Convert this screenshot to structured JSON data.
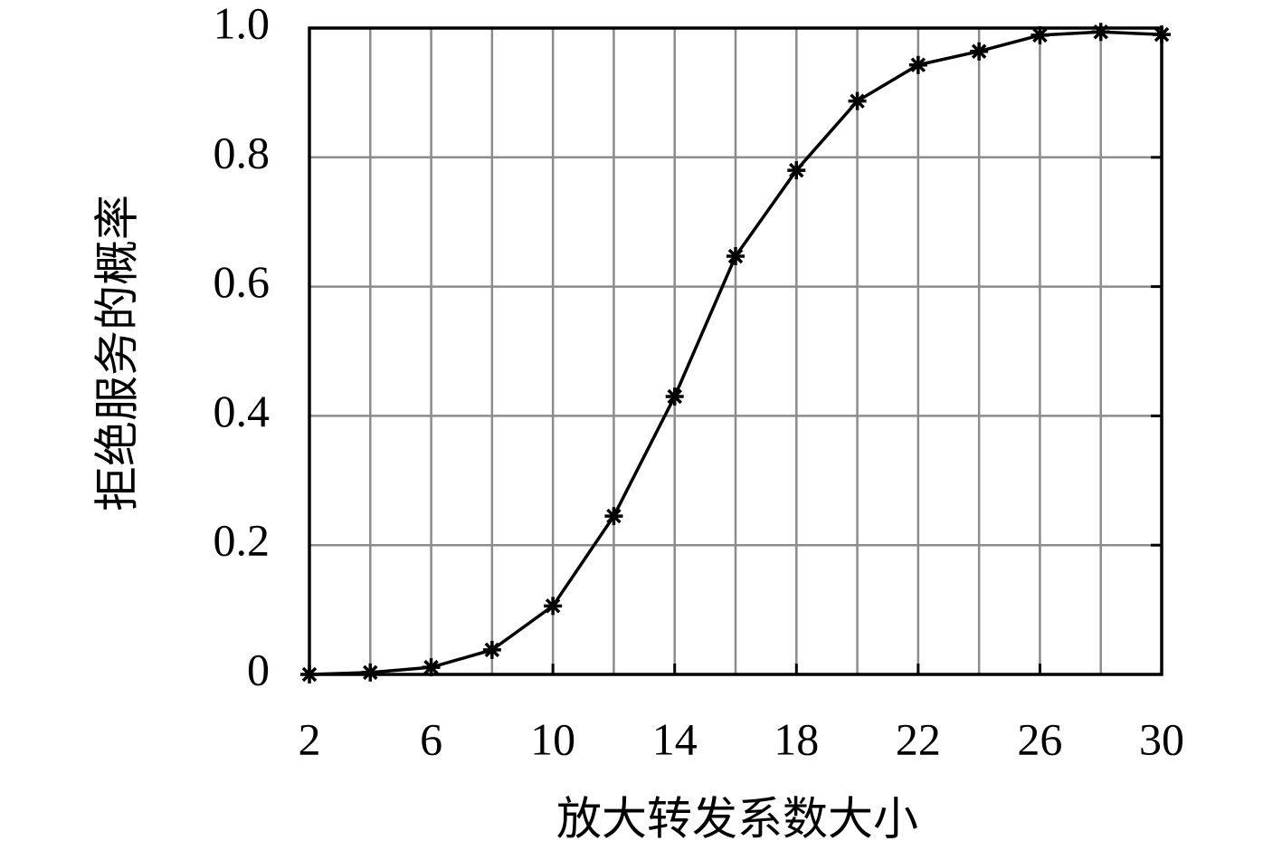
{
  "chart_data": {
    "type": "line",
    "x_label": "放大转发系数大小",
    "y_label": "拒绝服务的概率",
    "x": [
      2,
      4,
      6,
      8,
      10,
      12,
      14,
      16,
      18,
      20,
      22,
      24,
      26,
      28,
      30
    ],
    "series": [
      {
        "color": "#000000",
        "values": [
          0.0,
          0.003,
          0.011,
          0.038,
          0.106,
          0.245,
          0.43,
          0.647,
          0.78,
          0.887,
          0.943,
          0.964,
          0.989,
          0.994,
          0.99
        ]
      }
    ],
    "xlim": [
      2,
      30
    ],
    "xticks": [
      2,
      6,
      10,
      14,
      18,
      22,
      26,
      30
    ],
    "ylim": [
      0,
      1
    ],
    "yticks": [
      0,
      0.2,
      0.4,
      0.6,
      0.8,
      {
        "value": 1,
        "label": "1.0"
      }
    ],
    "grid": true
  }
}
